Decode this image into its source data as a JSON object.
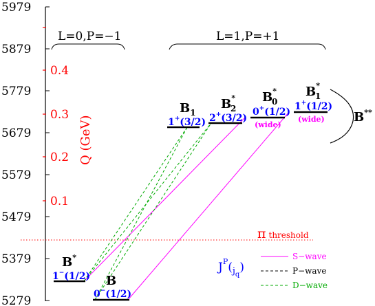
{
  "y_axis": {
    "ticks": [
      "5979",
      "5879",
      "5779",
      "5679",
      "5579",
      "5479",
      "5379",
      "5279"
    ],
    "color": "#000000"
  },
  "q_axis": {
    "label": "Q (GeV)",
    "ticks": [
      "0.4",
      "0.3",
      "0.2",
      "0.1"
    ],
    "color": "#ff0000"
  },
  "groups": {
    "left": "L=0,P=−1",
    "right": "L=1,P=+1"
  },
  "threshold": {
    "symbol": "π",
    "label": "threshold",
    "color": "#ff0000"
  },
  "states": {
    "bstar": {
      "name": "B",
      "sup": "*",
      "jp": "1",
      "jp_sup": "−",
      "jq": "(1/2)"
    },
    "b": {
      "name": "B",
      "jp": "0",
      "jp_sup": "−",
      "jq": "(1/2)"
    },
    "b1": {
      "name": "B",
      "sub": "1",
      "jp": "1",
      "jp_sup": "+",
      "jq": "(3/2)"
    },
    "b2star": {
      "name": "B",
      "sub": "2",
      "sup": "*",
      "jp": "2",
      "jp_sup": "+",
      "jq": "(3/2)"
    },
    "b0star": {
      "name": "B",
      "sub": "0",
      "sup": "*",
      "jp": "0",
      "jp_sup": "+",
      "jq": "(1/2)",
      "note": "(wide)"
    },
    "b1star": {
      "name": "B",
      "sub": "1",
      "sup": "*",
      "jp": "1",
      "jp_sup": "+",
      "jq": "(1/2)",
      "note": "(wide)"
    }
  },
  "bss": {
    "name": "B",
    "sup": "**"
  },
  "jp_label": {
    "j": "J",
    "p": "P",
    "open": "(",
    "jsub": "j",
    "qsub": "q",
    "close": ")"
  },
  "legend": [
    {
      "label": "S−wave",
      "color": "#ff00ff"
    },
    {
      "label": "P−wave",
      "color": "#000000"
    },
    {
      "label": "D−wave",
      "color": "#00aa00"
    }
  ],
  "colors": {
    "blue": "#0000ff",
    "magenta": "#ff00ff",
    "green": "#00aa00",
    "black": "#000000"
  }
}
